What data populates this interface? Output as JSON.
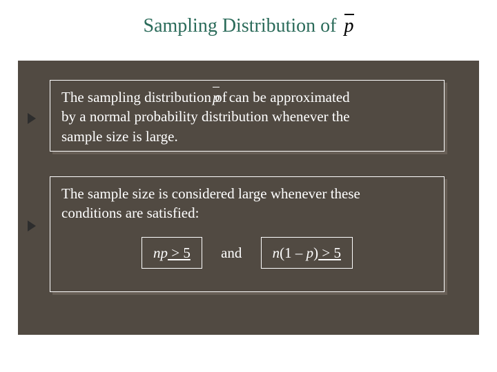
{
  "title": {
    "main": "Sampling Distribution of",
    "phat": "p"
  },
  "box1": {
    "line_pre": "The sampling distribution of    ",
    "phat": "p",
    "line_post": " can be approximated",
    "line2": "by a normal probability distribution whenever the",
    "line3": "sample size is large."
  },
  "box2": {
    "line1": "The sample size is considered large whenever these",
    "line2": "conditions are satisfied:",
    "cond1_np": "np",
    "cond1_rest": " > 5",
    "and": "and",
    "cond2_n": "n",
    "cond2_paren": "(1 – ",
    "cond2_p": "p",
    "cond2_close": ")",
    "cond2_rest": " > 5"
  },
  "colors": {
    "title_color": "#2b6b5a",
    "panel_bg": "#514a42",
    "text_light": "#ffffff",
    "bullet_color": "#2d2d2d"
  }
}
